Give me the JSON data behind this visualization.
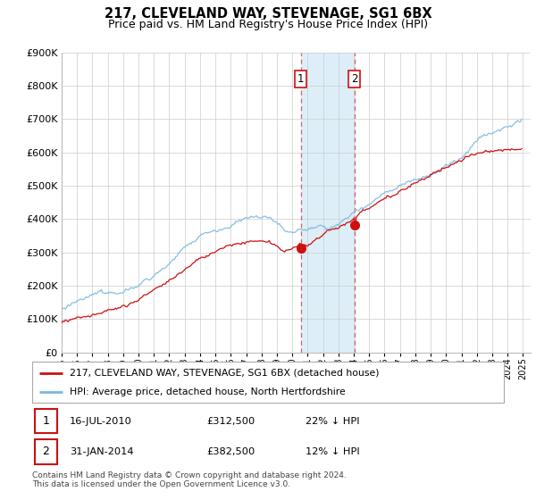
{
  "title": "217, CLEVELAND WAY, STEVENAGE, SG1 6BX",
  "subtitle": "Price paid vs. HM Land Registry's House Price Index (HPI)",
  "legend_line1": "217, CLEVELAND WAY, STEVENAGE, SG1 6BX (detached house)",
  "legend_line2": "HPI: Average price, detached house, North Hertfordshire",
  "transaction1_date": "16-JUL-2010",
  "transaction1_price": "£312,500",
  "transaction1_hpi": "22% ↓ HPI",
  "transaction2_date": "31-JAN-2014",
  "transaction2_price": "£382,500",
  "transaction2_hpi": "12% ↓ HPI",
  "footer": "Contains HM Land Registry data © Crown copyright and database right 2024.\nThis data is licensed under the Open Government Licence v3.0.",
  "hpi_color": "#7ab8e0",
  "price_color": "#cc1111",
  "shaded_region_color": "#ddeef8",
  "vline_color": "#e06060",
  "ylim_min": 0,
  "ylim_max": 900000,
  "yticks": [
    0,
    100000,
    200000,
    300000,
    400000,
    500000,
    600000,
    700000,
    800000,
    900000
  ],
  "xmin": 1995,
  "xmax": 2025.5
}
